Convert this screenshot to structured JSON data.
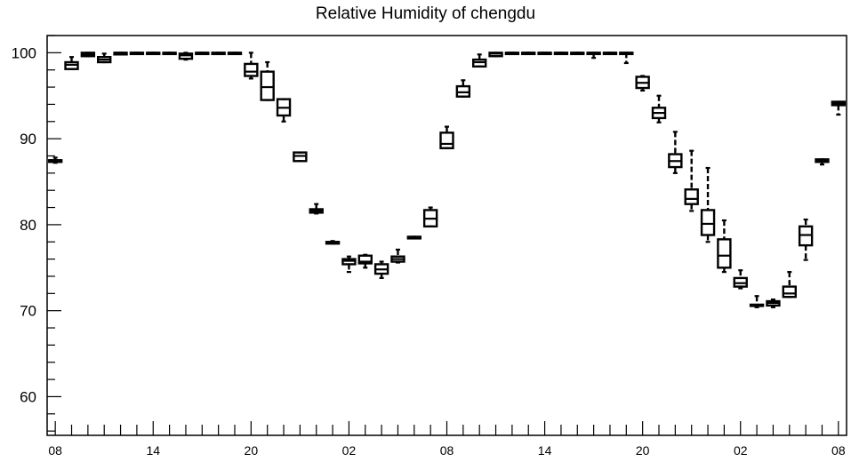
{
  "chart_data": {
    "type": "box",
    "title": "Relative Humidity of chengdu",
    "xlabel": "",
    "ylabel": "",
    "ylim": [
      55.5,
      102
    ],
    "y_ticks": [
      60,
      70,
      80,
      90,
      100
    ],
    "x_tick_labels": [
      "08",
      "14",
      "20",
      "02",
      "08",
      "14",
      "20",
      "02",
      "08"
    ],
    "x_tick_label_hours": [
      0,
      6,
      12,
      18,
      24,
      30,
      36,
      42,
      48
    ],
    "x_range_hours": [
      -0.5,
      48.5
    ],
    "grid": false,
    "colors": {
      "box": "#000000",
      "background": "#ffffff"
    },
    "boxes": [
      {
        "x": 0,
        "min": 87.2,
        "q1": 87.3,
        "median": 87.5,
        "q3": 87.5,
        "max": 87.8
      },
      {
        "x": 1,
        "min": 98.1,
        "q1": 98.1,
        "median": 98.6,
        "q3": 98.9,
        "max": 99.5
      },
      {
        "x": 2,
        "min": 99.6,
        "q1": 99.6,
        "median": 99.8,
        "q3": 100,
        "max": 100
      },
      {
        "x": 3,
        "min": 98.9,
        "q1": 98.9,
        "median": 99.2,
        "q3": 99.5,
        "max": 99.9
      },
      {
        "x": 4,
        "min": 99.8,
        "q1": 99.8,
        "median": 100,
        "q3": 100,
        "max": 100
      },
      {
        "x": 5,
        "min": 100,
        "q1": 100,
        "median": 100,
        "q3": 100,
        "max": 100
      },
      {
        "x": 6,
        "min": 100,
        "q1": 100,
        "median": 100,
        "q3": 100,
        "max": 100
      },
      {
        "x": 7,
        "min": 100,
        "q1": 100,
        "median": 100,
        "q3": 100,
        "max": 100
      },
      {
        "x": 8,
        "min": 99.2,
        "q1": 99.3,
        "median": 99.7,
        "q3": 99.9,
        "max": 100
      },
      {
        "x": 9,
        "min": 100,
        "q1": 100,
        "median": 100,
        "q3": 100,
        "max": 100
      },
      {
        "x": 10,
        "min": 100,
        "q1": 100,
        "median": 100,
        "q3": 100,
        "max": 100
      },
      {
        "x": 11,
        "min": 100,
        "q1": 100,
        "median": 100,
        "q3": 100,
        "max": 100
      },
      {
        "x": 12,
        "min": 97.0,
        "q1": 97.3,
        "median": 97.8,
        "q3": 98.7,
        "max": 100
      },
      {
        "x": 13,
        "min": 94.5,
        "q1": 94.5,
        "median": 96.0,
        "q3": 97.8,
        "max": 98.9
      },
      {
        "x": 14,
        "min": 92.0,
        "q1": 92.7,
        "median": 93.6,
        "q3": 94.6,
        "max": 94.6
      },
      {
        "x": 15,
        "min": 87.4,
        "q1": 87.4,
        "median": 88.0,
        "q3": 88.4,
        "max": 88.4
      },
      {
        "x": 16,
        "min": 81.3,
        "q1": 81.4,
        "median": 81.6,
        "q3": 81.8,
        "max": 82.4
      },
      {
        "x": 17,
        "min": 77.8,
        "q1": 77.8,
        "median": 77.9,
        "q3": 78.0,
        "max": 78.1
      },
      {
        "x": 18,
        "min": 74.5,
        "q1": 75.4,
        "median": 75.8,
        "q3": 76.0,
        "max": 76.3
      },
      {
        "x": 19,
        "min": 75.0,
        "q1": 75.5,
        "median": 75.7,
        "q3": 76.4,
        "max": 76.5
      },
      {
        "x": 20,
        "min": 73.8,
        "q1": 74.3,
        "median": 74.8,
        "q3": 75.4,
        "max": 75.7
      },
      {
        "x": 21,
        "min": 75.6,
        "q1": 75.7,
        "median": 76.0,
        "q3": 76.3,
        "max": 77.1
      },
      {
        "x": 22,
        "min": 78.4,
        "q1": 78.4,
        "median": 78.5,
        "q3": 78.6,
        "max": 78.6
      },
      {
        "x": 23,
        "min": 79.8,
        "q1": 79.8,
        "median": 80.7,
        "q3": 81.7,
        "max": 82.0
      },
      {
        "x": 24,
        "min": 88.9,
        "q1": 88.9,
        "median": 89.4,
        "q3": 90.7,
        "max": 91.4
      },
      {
        "x": 25,
        "min": 94.9,
        "q1": 94.9,
        "median": 95.4,
        "q3": 96.1,
        "max": 96.8
      },
      {
        "x": 26,
        "min": 98.4,
        "q1": 98.4,
        "median": 98.9,
        "q3": 99.2,
        "max": 99.8
      },
      {
        "x": 27,
        "min": 99.6,
        "q1": 99.6,
        "median": 99.9,
        "q3": 100,
        "max": 100
      },
      {
        "x": 28,
        "min": 100,
        "q1": 100,
        "median": 100,
        "q3": 100,
        "max": 100
      },
      {
        "x": 29,
        "min": 100,
        "q1": 100,
        "median": 100,
        "q3": 100,
        "max": 100
      },
      {
        "x": 30,
        "min": 100,
        "q1": 100,
        "median": 100,
        "q3": 100,
        "max": 100
      },
      {
        "x": 31,
        "min": 100,
        "q1": 100,
        "median": 100,
        "q3": 100,
        "max": 100
      },
      {
        "x": 32,
        "min": 100,
        "q1": 100,
        "median": 100,
        "q3": 100,
        "max": 100
      },
      {
        "x": 33,
        "min": 99.4,
        "q1": 100,
        "median": 100,
        "q3": 100,
        "max": 100
      },
      {
        "x": 34,
        "min": 100,
        "q1": 100,
        "median": 100,
        "q3": 100,
        "max": 100
      },
      {
        "x": 35,
        "min": 98.8,
        "q1": 100,
        "median": 100,
        "q3": 100,
        "max": 100
      },
      {
        "x": 36,
        "min": 95.6,
        "q1": 95.9,
        "median": 96.5,
        "q3": 97.2,
        "max": 97.3
      },
      {
        "x": 37,
        "min": 91.9,
        "q1": 92.4,
        "median": 93.0,
        "q3": 93.6,
        "max": 95.0
      },
      {
        "x": 38,
        "min": 86.0,
        "q1": 86.7,
        "median": 87.4,
        "q3": 88.2,
        "max": 90.8
      },
      {
        "x": 39,
        "min": 81.6,
        "q1": 82.4,
        "median": 83.0,
        "q3": 84.1,
        "max": 88.6
      },
      {
        "x": 40,
        "min": 78.0,
        "q1": 78.8,
        "median": 80.1,
        "q3": 81.7,
        "max": 86.6
      },
      {
        "x": 41,
        "min": 74.5,
        "q1": 75.0,
        "median": 76.4,
        "q3": 78.3,
        "max": 80.5
      },
      {
        "x": 42,
        "min": 72.6,
        "q1": 72.8,
        "median": 73.2,
        "q3": 73.8,
        "max": 74.7
      },
      {
        "x": 43,
        "min": 70.4,
        "q1": 70.6,
        "median": 70.6,
        "q3": 70.7,
        "max": 71.7
      },
      {
        "x": 44,
        "min": 70.4,
        "q1": 70.6,
        "median": 70.9,
        "q3": 71.1,
        "max": 71.3
      },
      {
        "x": 45,
        "min": 71.6,
        "q1": 71.6,
        "median": 72.0,
        "q3": 72.8,
        "max": 74.5
      },
      {
        "x": 46,
        "min": 75.9,
        "q1": 77.6,
        "median": 78.8,
        "q3": 79.8,
        "max": 80.6
      },
      {
        "x": 47,
        "min": 87.0,
        "q1": 87.3,
        "median": 87.5,
        "q3": 87.6,
        "max": 87.6
      },
      {
        "x": 48,
        "min": 92.8,
        "q1": 93.9,
        "median": 94.1,
        "q3": 94.3,
        "max": 94.3
      }
    ]
  }
}
